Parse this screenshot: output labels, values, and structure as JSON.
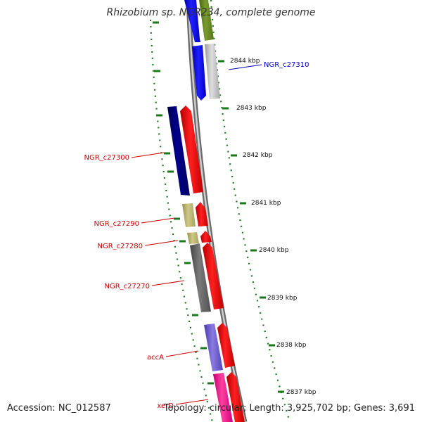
{
  "title": "Rhizobium sp. NGR234, complete genome",
  "accession": "Accession: NC_012587",
  "topology": "Topology: circular; Length: 3,925,702 bp; Genes: 3,691",
  "scale_labels": [
    "2844 kbp",
    "2843 kbp",
    "2842 kbp",
    "2841 kbp",
    "2840 kbp",
    "2839 kbp",
    "2838 kbp",
    "2837 kbp"
  ],
  "gene_labels": [
    {
      "text": "NGR_c27310",
      "color": "#0000cc"
    },
    {
      "text": "NGR_c27300",
      "color": "#cc0000"
    },
    {
      "text": "NGR_c27290",
      "color": "#cc0000"
    },
    {
      "text": "NGR_c27280",
      "color": "#cc0000"
    },
    {
      "text": "NGR_c27270",
      "color": "#cc0000"
    },
    {
      "text": "accA",
      "color": "#cc0000"
    },
    {
      "text": "xerD",
      "color": "#cc0000"
    }
  ],
  "colors": {
    "backbone": "#888888",
    "tick": "#1a7a1a",
    "forward_red": "#ff0000",
    "blue": "#0000ff",
    "navy": "#00007a",
    "olive": "#6b8e23",
    "khaki": "#bdb76b",
    "grey_light": "#c0c0c0",
    "grey_dark": "#666666",
    "purple": "#6a5acd",
    "pink": "#ff1493"
  }
}
